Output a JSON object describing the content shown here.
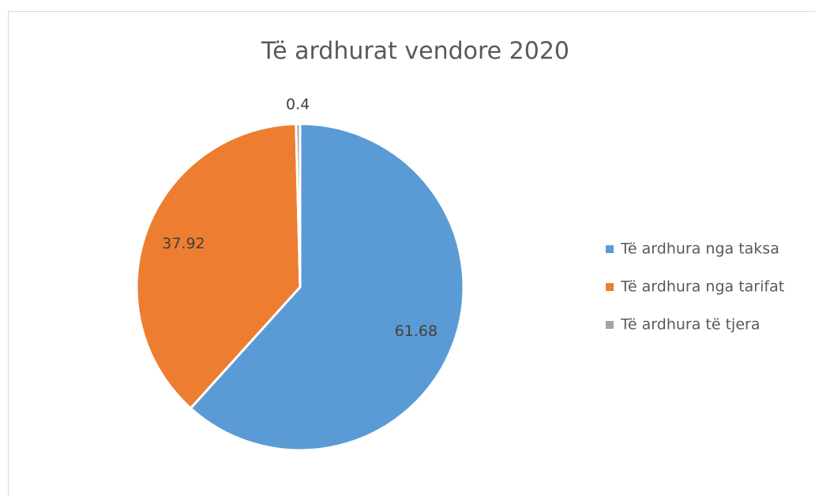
{
  "chart_data": {
    "type": "pie",
    "title": "Të ardhurat vendore 2020",
    "categories": [
      "Të ardhura nga taksa",
      "Të ardhura nga tarifat",
      "Të ardhura të tjera"
    ],
    "values": [
      61.68,
      37.92,
      0.4
    ],
    "colors": [
      "#5b9bd5",
      "#ed7d31",
      "#a5a5a5"
    ],
    "legend": "right"
  }
}
